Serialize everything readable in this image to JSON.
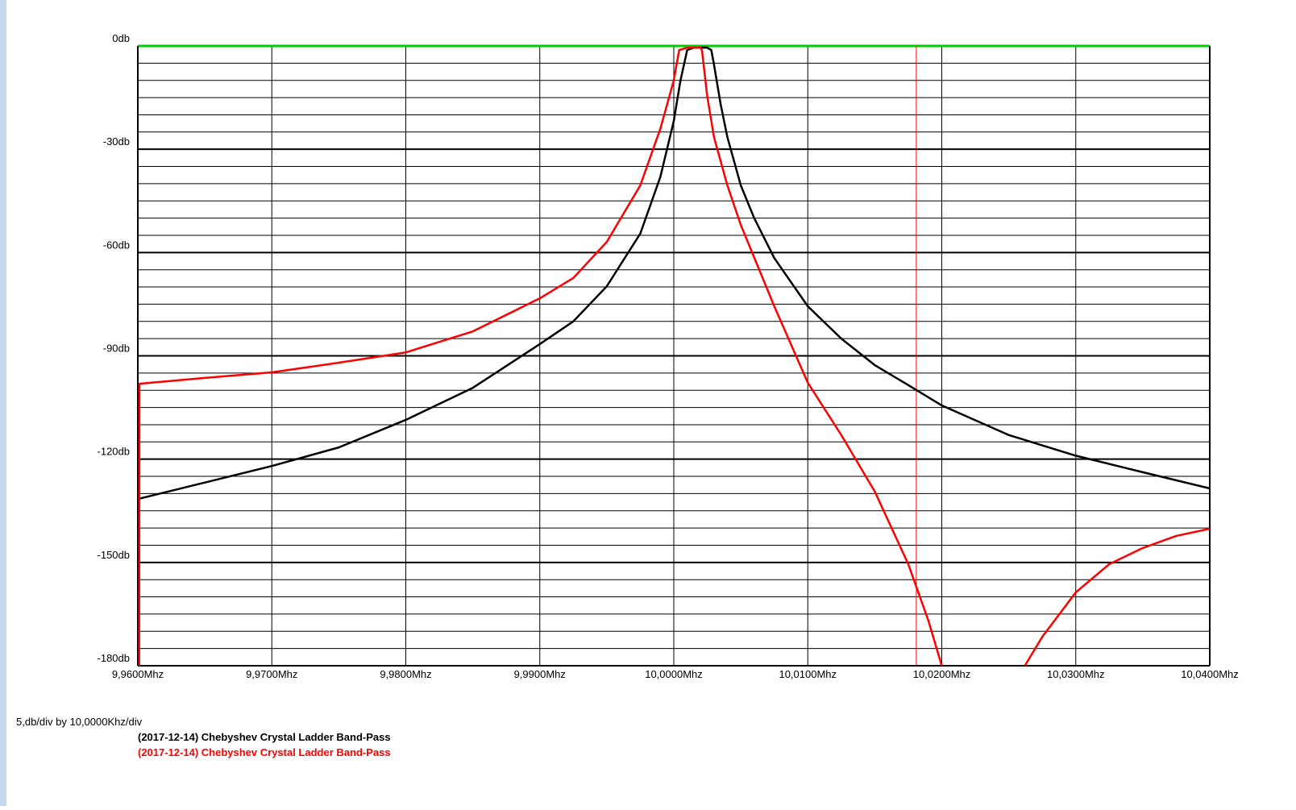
{
  "chart_data": {
    "type": "line",
    "footer": "5,db/div by 10,0000Khz/div",
    "xlim": [
      9.96,
      10.04
    ],
    "ylim": [
      -180,
      0
    ],
    "xticks": [
      {
        "value": 9.96,
        "label": "9,9600Mhz"
      },
      {
        "value": 9.97,
        "label": "9,9700Mhz"
      },
      {
        "value": 9.98,
        "label": "9,9800Mhz"
      },
      {
        "value": 9.99,
        "label": "9,9900Mhz"
      },
      {
        "value": 10.0,
        "label": "10,0000Mhz"
      },
      {
        "value": 10.01,
        "label": "10,0100Mhz"
      },
      {
        "value": 10.02,
        "label": "10,0200Mhz"
      },
      {
        "value": 10.03,
        "label": "10,0300Mhz"
      },
      {
        "value": 10.04,
        "label": "10,0400Mhz"
      }
    ],
    "yticks": [
      {
        "value": 0,
        "label": "0db"
      },
      {
        "value": -30,
        "label": "-30db"
      },
      {
        "value": -60,
        "label": "-60db"
      },
      {
        "value": -90,
        "label": "-90db"
      },
      {
        "value": -120,
        "label": "-120db"
      },
      {
        "value": -150,
        "label": "-150db"
      },
      {
        "value": -180,
        "label": "-180db"
      }
    ],
    "minor_yticks": [
      -5,
      -10,
      -15,
      -20,
      -25,
      -35,
      -40,
      -45,
      -50,
      -55,
      -65,
      -70,
      -75,
      -80,
      -85,
      -95,
      -100,
      -105,
      -110,
      -115,
      -125,
      -130,
      -135,
      -140,
      -145,
      -155,
      -160,
      -165,
      -170,
      -175
    ],
    "grid": true,
    "top_line_color": "#00cc00",
    "marker_x": 10.0181,
    "marker_color": "#ff0000",
    "series": [
      {
        "name": "(2017-12-14) Chebyshev Crystal Ladder Band-Pass",
        "color": "#000000",
        "x": [
          9.96,
          9.97,
          9.975,
          9.98,
          9.985,
          9.99,
          9.9925,
          9.995,
          9.9975,
          9.999,
          10.0,
          10.0005,
          10.001,
          10.0015,
          10.002,
          10.0025,
          10.0028,
          10.003,
          10.0035,
          10.004,
          10.005,
          10.006,
          10.0075,
          10.01,
          10.0125,
          10.015,
          10.0175,
          10.02,
          10.025,
          10.03,
          10.035,
          10.04
        ],
        "values": [
          -131.6,
          -122,
          -116.6,
          -108.6,
          -99.3,
          -86.6,
          -80,
          -69.8,
          -54.5,
          -38,
          -21.8,
          -10,
          -1.2,
          -0.5,
          -0.5,
          -0.5,
          -1.2,
          -5.4,
          -17,
          -26.5,
          -40.5,
          -50,
          -61.6,
          -75.6,
          -85,
          -92.7,
          -98.5,
          -104.4,
          -113,
          -119,
          -123.8,
          -128.5
        ]
      },
      {
        "name": "(2017-12-14) Chebyshev Crystal Ladder Band-Pass",
        "color": "#ff0000",
        "x": [
          9.9601,
          9.96012,
          9.965,
          9.97,
          9.975,
          9.98,
          9.985,
          9.99,
          9.9925,
          9.995,
          9.9975,
          9.999,
          10.0,
          10.0004,
          10.001,
          10.002,
          10.0021,
          10.0025,
          10.003,
          10.004,
          10.005,
          10.0075,
          10.01,
          10.0125,
          10.015,
          10.0175,
          10.019,
          10.02,
          10.023,
          10.0262,
          10.0275,
          10.03,
          10.0325,
          10.035,
          10.0375,
          10.04
        ],
        "values": [
          -180,
          -98.1,
          -96.4,
          -94.8,
          -92,
          -89,
          -82.9,
          -73.3,
          -67.4,
          -56.9,
          -40.5,
          -24,
          -10,
          -1.2,
          -0.5,
          -0.5,
          -1.2,
          -14.7,
          -26.5,
          -40.5,
          -52,
          -75.6,
          -97.8,
          -113,
          -129.4,
          -150.5,
          -166.9,
          -180,
          null,
          -180,
          -171.6,
          -158.7,
          -150.5,
          -145.8,
          -142.3,
          -140.2
        ]
      }
    ]
  }
}
